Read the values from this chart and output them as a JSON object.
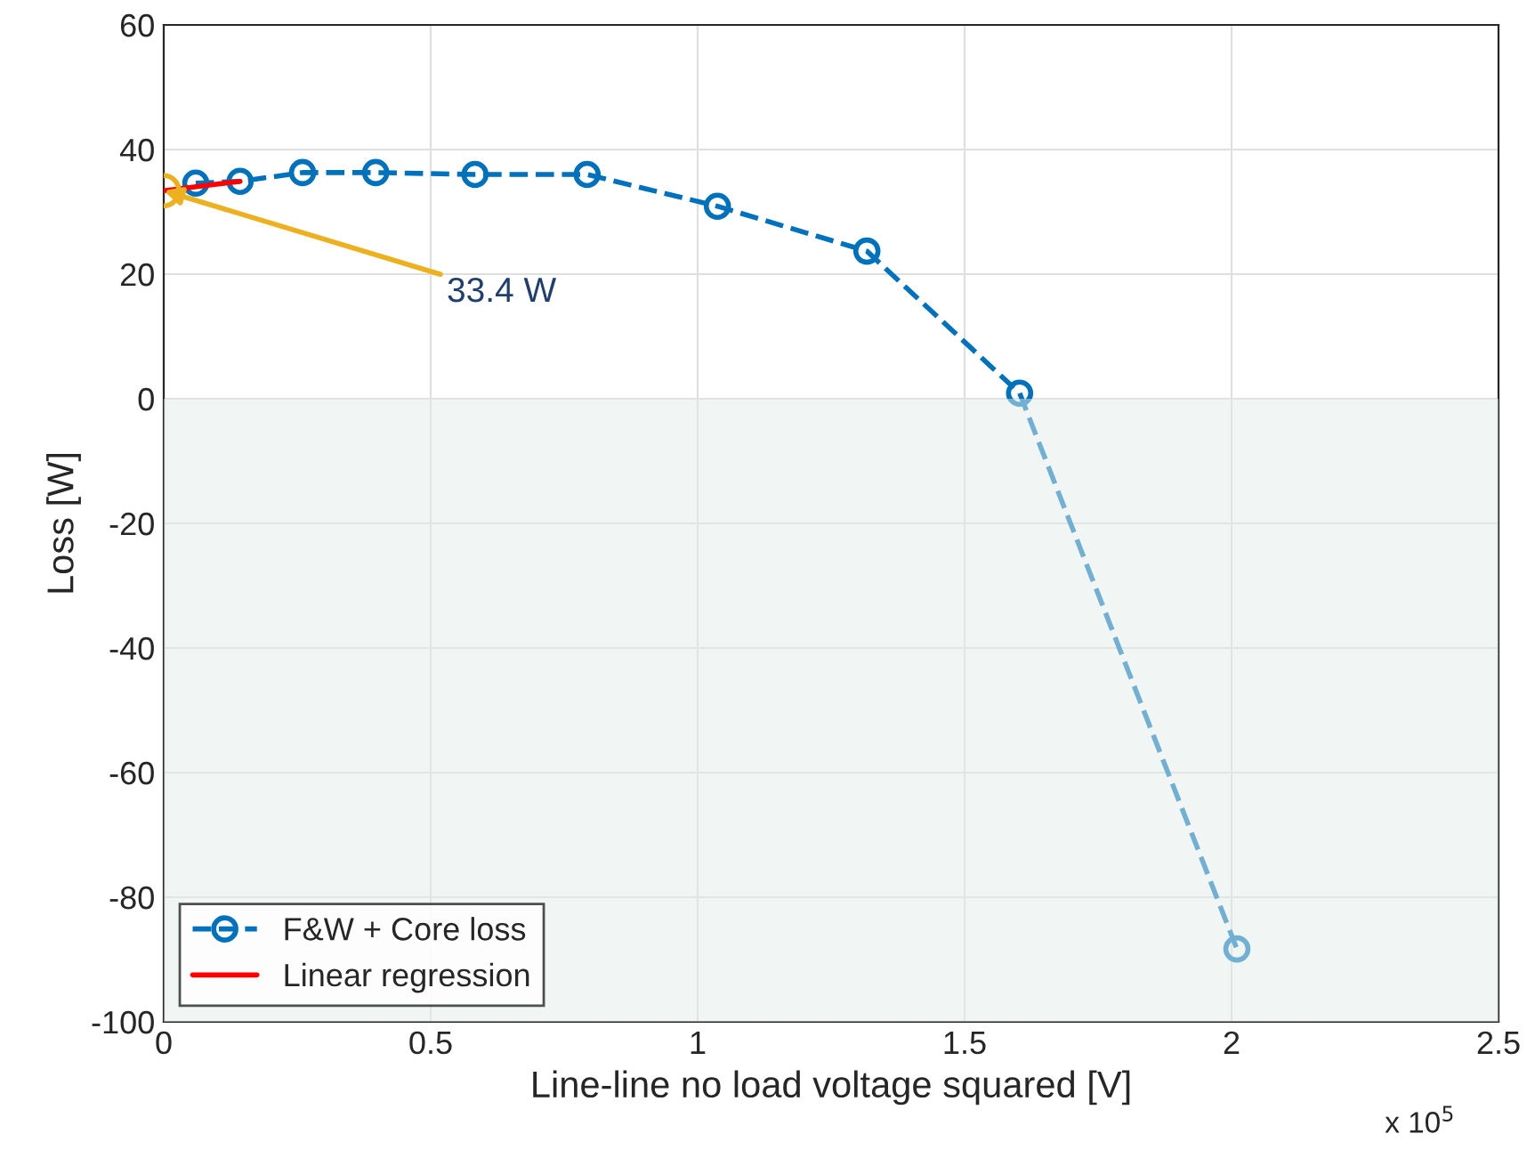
{
  "chart_data": {
    "type": "line",
    "xlabel": "Line-line no load voltage squared [V]",
    "ylabel": "Loss [W]",
    "xlim": [
      0,
      2.5
    ],
    "xticks": [
      0,
      0.5,
      1,
      1.5,
      2,
      2.5
    ],
    "ylim": [
      -100,
      60
    ],
    "yticks": [
      -100,
      -80,
      -60,
      -40,
      -20,
      0,
      20,
      40,
      60
    ],
    "grid": true,
    "legend": "bottom left",
    "marker": "circle",
    "line_style": "dashed",
    "series": [
      {
        "name": "F&W + Core loss",
        "color": "#0072bd",
        "x": [
          0.06,
          0.143,
          0.26,
          0.397,
          0.583,
          0.793,
          1.037,
          1.317,
          1.603,
          2.01
        ],
        "values": [
          34.6,
          34.9,
          36.3,
          36.3,
          36,
          36,
          30.9,
          23.7,
          0.9,
          -88.3
        ]
      },
      {
        "name": "Linear regression",
        "color": "#ff0000",
        "x": [
          0,
          0.143
        ],
        "values": [
          33.4,
          34.9
        ],
        "marker": "none",
        "line_style": "solid"
      },
      {
        "type": "scatter",
        "color": "#edb120",
        "x": [
          0
        ],
        "values": [
          33.4
        ]
      }
    ],
    "bands": [
      {
        "axis": "y",
        "from": -100,
        "to": 0,
        "color": "#e4eeea"
      }
    ],
    "annotations": [
      {
        "text": "33.4 W",
        "x": 0,
        "y": 33.4
      },
      "x 10$^{5}$"
    ]
  }
}
